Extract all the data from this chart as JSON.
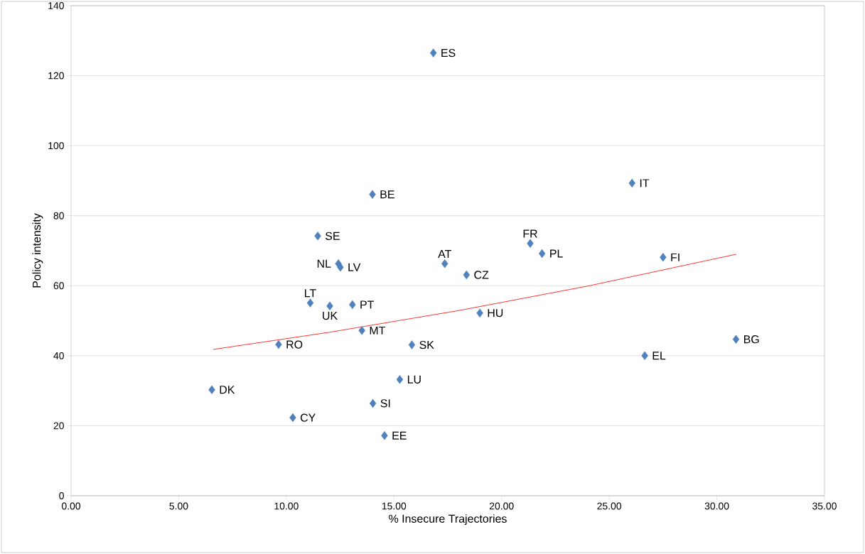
{
  "chart_data": {
    "type": "scatter",
    "xlabel": "% Insecure Trajectories",
    "ylabel": "Policy intensity",
    "xlim": [
      0,
      35
    ],
    "ylim": [
      0,
      140
    ],
    "xticks": [
      {
        "value": 0,
        "label": "0.00"
      },
      {
        "value": 5,
        "label": "5.00"
      },
      {
        "value": 10,
        "label": "10.00"
      },
      {
        "value": 15,
        "label": "15.00"
      },
      {
        "value": 20,
        "label": "20.00"
      },
      {
        "value": 25,
        "label": "25.00"
      },
      {
        "value": 30,
        "label": "30.00"
      },
      {
        "value": 35,
        "label": "35.00"
      }
    ],
    "yticks": [
      0,
      20,
      40,
      60,
      80,
      100,
      120,
      140
    ],
    "grid": "y",
    "marker": "diamond",
    "series": [
      {
        "color": "#4f81bd",
        "x": [
          16.83,
          26.06,
          14.0,
          11.46,
          12.42,
          12.51,
          11.11,
          12.02,
          13.07,
          13.51,
          15.83,
          9.64,
          6.54,
          10.3,
          14.02,
          15.27,
          14.56,
          17.36,
          18.37,
          18.99,
          21.33,
          21.88,
          27.5,
          26.65,
          30.89
        ],
        "values": [
          126.5,
          89.3,
          86.1,
          74.2,
          66.3,
          65.3,
          55.1,
          54.2,
          54.6,
          47.2,
          43.1,
          43.2,
          30.3,
          22.3,
          26.4,
          33.2,
          17.2,
          66.3,
          63.1,
          52.2,
          72.1,
          69.2,
          68.1,
          40.0,
          44.7
        ]
      },
      {
        "type": "line",
        "marker": "none",
        "color": "#ff0000",
        "x": [
          6.6,
          12,
          18,
          24,
          30.9
        ],
        "values": [
          41.8,
          46.7,
          52.9,
          59.9,
          69.0
        ]
      }
    ],
    "annotations": [
      {
        "text": "ES",
        "x": 16.83,
        "y": 126.5
      },
      {
        "text": "IT",
        "x": 26.06,
        "y": 89.3
      },
      {
        "text": "BE",
        "x": 14.0,
        "y": 86.1
      },
      {
        "text": "SE",
        "x": 11.46,
        "y": 74.2
      },
      {
        "text": "NL",
        "x": 12.42,
        "y": 66.3
      },
      {
        "text": "LV",
        "x": 12.51,
        "y": 65.3
      },
      {
        "text": "LT",
        "x": 11.11,
        "y": 55.1
      },
      {
        "text": "UK",
        "x": 12.02,
        "y": 54.2
      },
      {
        "text": "PT",
        "x": 13.07,
        "y": 54.6
      },
      {
        "text": "MT",
        "x": 13.51,
        "y": 47.2
      },
      {
        "text": "SK",
        "x": 15.83,
        "y": 43.1
      },
      {
        "text": "RO",
        "x": 9.64,
        "y": 43.2
      },
      {
        "text": "DK",
        "x": 6.54,
        "y": 30.3
      },
      {
        "text": "CY",
        "x": 10.3,
        "y": 22.3
      },
      {
        "text": "SI",
        "x": 14.02,
        "y": 26.4
      },
      {
        "text": "LU",
        "x": 15.27,
        "y": 33.2
      },
      {
        "text": "EE",
        "x": 14.56,
        "y": 17.2
      },
      {
        "text": "AT",
        "x": 17.36,
        "y": 66.3
      },
      {
        "text": "CZ",
        "x": 18.37,
        "y": 63.1
      },
      {
        "text": "HU",
        "x": 18.99,
        "y": 52.2
      },
      {
        "text": "FR",
        "x": 21.33,
        "y": 72.1
      },
      {
        "text": "PL",
        "x": 21.88,
        "y": 69.2
      },
      {
        "text": "FI",
        "x": 27.5,
        "y": 68.1
      },
      {
        "text": "EL",
        "x": 26.65,
        "y": 40.0
      },
      {
        "text": "BG",
        "x": 30.89,
        "y": 44.7
      }
    ]
  }
}
